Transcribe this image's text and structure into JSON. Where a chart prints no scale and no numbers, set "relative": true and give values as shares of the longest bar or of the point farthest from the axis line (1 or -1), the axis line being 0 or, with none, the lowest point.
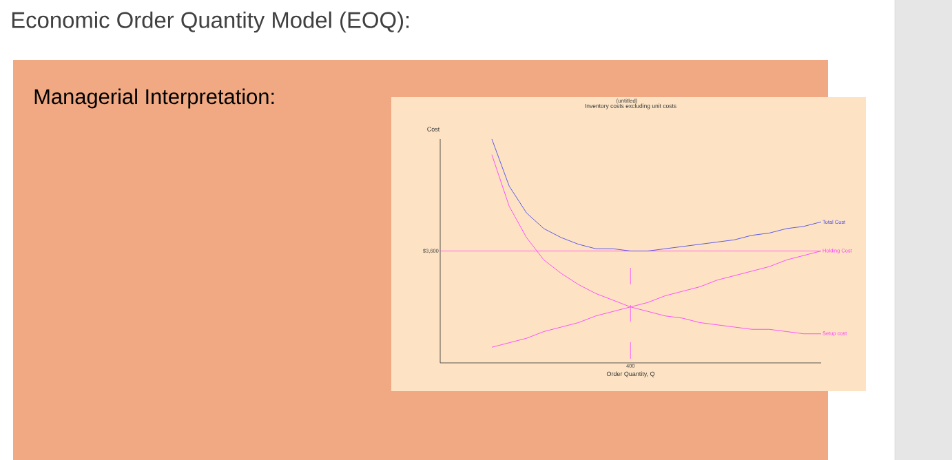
{
  "chart_data": {
    "type": "line",
    "title": "Inventory costs excluding unit costs",
    "xlabel": "Order Quantity, Q",
    "relative": true,
    "categories": [
      null,
      null,
      null,
      null,
      null,
      null,
      null,
      null,
      null,
      null,
      null,
      null,
      null,
      null,
      null,
      null,
      null,
      null,
      null,
      null
    ],
    "series": [
      {
        "name": "Total Cost",
        "color": "#4a4af0",
        "values": [
          1.0,
          0.79,
          0.67,
          0.6,
          0.56,
          0.53,
          0.51,
          0.51,
          0.5,
          0.5,
          0.51,
          0.52,
          0.53,
          0.54,
          0.55,
          0.57,
          0.58,
          0.6,
          0.61,
          0.63
        ]
      },
      {
        "name": "Holding Cost",
        "color": "#ff40ff",
        "values": [
          0.07,
          0.09,
          0.11,
          0.14,
          0.16,
          0.18,
          0.21,
          0.23,
          0.25,
          0.27,
          0.3,
          0.32,
          0.34,
          0.37,
          0.39,
          0.41,
          0.43,
          0.46,
          0.48,
          0.5
        ]
      },
      {
        "name": "Setup cost",
        "color": "#ff40ff",
        "values": [
          0.93,
          0.7,
          0.56,
          0.46,
          0.4,
          0.35,
          0.31,
          0.28,
          0.25,
          0.23,
          0.21,
          0.2,
          0.18,
          0.17,
          0.16,
          0.15,
          0.15,
          0.14,
          0.13,
          0.13
        ]
      }
    ],
    "ref_lines": [
      {
        "axis": "y",
        "value": 0.5,
        "color": "#ff40ff",
        "line_style": "solid"
      }
    ],
    "marker": "none",
    "line_style": "solid",
    "annotations": [
      "Economic Order Quantity Model (EOQ):",
      "Managerial Interpretation:",
      "(untitled)",
      "$3,600",
      "400",
      "Cost"
    ]
  }
}
